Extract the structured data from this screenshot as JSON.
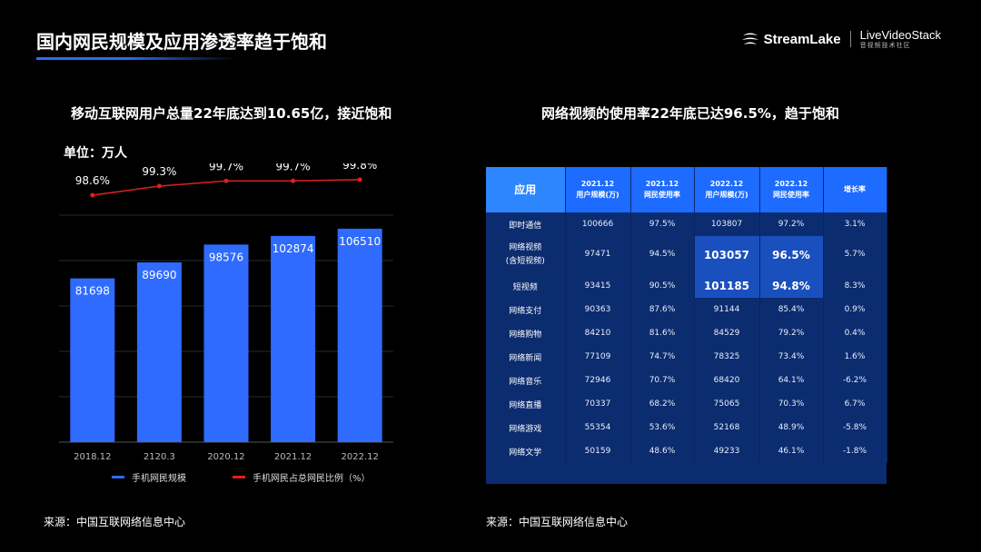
{
  "header": {
    "title": "国内网民规模及应用渗透率趋于饱和",
    "brand_streamlake": "StreamLake",
    "brand_lvs": "LiveVideoStack",
    "brand_lvs_sub": "音视频技术社区"
  },
  "left": {
    "subtitle": "移动互联网用户总量22年底达到10.65亿，接近饱和",
    "unit": "单位：万人",
    "source": "来源：中国互联网络信息中心"
  },
  "chart_data": {
    "type": "bar",
    "categories": [
      "2018.12",
      "2120.3",
      "2020.12",
      "2021.12",
      "2022.12"
    ],
    "series": [
      {
        "name": "手机网民规模",
        "type": "bar",
        "values": [
          81698,
          89690,
          98576,
          102874,
          106510
        ],
        "color": "#2f6bff"
      },
      {
        "name": "手机网民占总网民比例（%）",
        "type": "line",
        "values": [
          98.6,
          99.3,
          99.7,
          99.7,
          99.8
        ],
        "labels": [
          "98.6%",
          "99.3%",
          "99.7%",
          "99.7%",
          "99.8%"
        ],
        "color": "#e0211c"
      }
    ],
    "bar_ylim": [
      0,
      130000
    ],
    "line_ylim": [
      96.5,
      100.0
    ],
    "grid": true,
    "legend_position": "bottom"
  },
  "right": {
    "subtitle": "网络视频的使用率22年底已达96.5%，趋于饱和",
    "source": "来源：中国互联网络信息中心",
    "table": {
      "headers": [
        {
          "l1": "应用",
          "l2": ""
        },
        {
          "l1": "2021.12",
          "l2": "用户规模(万)"
        },
        {
          "l1": "2021.12",
          "l2": "网民使用率"
        },
        {
          "l1": "2022.12",
          "l2": "用户规模(万)"
        },
        {
          "l1": "2022.12",
          "l2": "网民使用率"
        },
        {
          "l1": "增长率",
          "l2": ""
        }
      ],
      "rows": [
        {
          "app": "即时通信",
          "app2": "",
          "c1": "100666",
          "c2": "97.5%",
          "c3": "103807",
          "c4": "97.2%",
          "c5": "3.1%"
        },
        {
          "app": "网络视频",
          "app2": "(含短视频)",
          "c1": "97471",
          "c2": "94.5%",
          "c3": "103057",
          "c4": "96.5%",
          "c5": "5.7%"
        },
        {
          "app": "短视频",
          "app2": "",
          "c1": "93415",
          "c2": "90.5%",
          "c3": "101185",
          "c4": "94.8%",
          "c5": "8.3%"
        },
        {
          "app": "网络支付",
          "app2": "",
          "c1": "90363",
          "c2": "87.6%",
          "c3": "91144",
          "c4": "85.4%",
          "c5": "0.9%"
        },
        {
          "app": "网络购物",
          "app2": "",
          "c1": "84210",
          "c2": "81.6%",
          "c3": "84529",
          "c4": "79.2%",
          "c5": "0.4%"
        },
        {
          "app": "网络新闻",
          "app2": "",
          "c1": "77109",
          "c2": "74.7%",
          "c3": "78325",
          "c4": "73.4%",
          "c5": "1.6%"
        },
        {
          "app": "网络音乐",
          "app2": "",
          "c1": "72946",
          "c2": "70.7%",
          "c3": "68420",
          "c4": "64.1%",
          "c5": "-6.2%"
        },
        {
          "app": "网络直播",
          "app2": "",
          "c1": "70337",
          "c2": "68.2%",
          "c3": "75065",
          "c4": "70.3%",
          "c5": "6.7%"
        },
        {
          "app": "网络游戏",
          "app2": "",
          "c1": "55354",
          "c2": "53.6%",
          "c3": "52168",
          "c4": "48.9%",
          "c5": "-5.8%"
        },
        {
          "app": "网络文学",
          "app2": "",
          "c1": "50159",
          "c2": "48.6%",
          "c3": "49233",
          "c4": "46.1%",
          "c5": "-1.8%"
        }
      ]
    }
  }
}
